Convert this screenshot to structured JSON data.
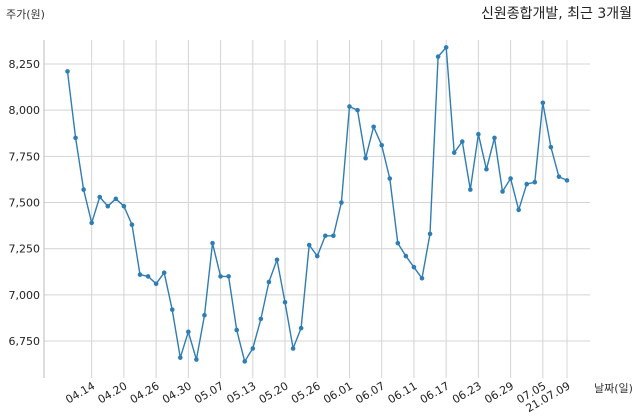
{
  "chart_data": {
    "type": "line",
    "title": "신원종합개발, 최근 3개월",
    "xlabel": "날짜(일)",
    "ylabel": "주가(원)",
    "ylim": [
      6550,
      8380
    ],
    "grid": true,
    "color": "#2e7db3",
    "yticks": [
      6750,
      7000,
      7250,
      7500,
      7750,
      8000,
      8250
    ],
    "ytick_labels": [
      "6,750",
      "7,000",
      "7,250",
      "7,500",
      "7,750",
      "8,000",
      "8,250"
    ],
    "xticks": [
      {
        "index": 3,
        "label": "04.14"
      },
      {
        "index": 7,
        "label": "04.20"
      },
      {
        "index": 11,
        "label": "04.26"
      },
      {
        "index": 15,
        "label": "04.30"
      },
      {
        "index": 19,
        "label": "05.07"
      },
      {
        "index": 23,
        "label": "05.13"
      },
      {
        "index": 27,
        "label": "05.20"
      },
      {
        "index": 31,
        "label": "05.26"
      },
      {
        "index": 35,
        "label": "06.01"
      },
      {
        "index": 39,
        "label": "06.07"
      },
      {
        "index": 43,
        "label": "06.11"
      },
      {
        "index": 47,
        "label": "06.17"
      },
      {
        "index": 51,
        "label": "06.23"
      },
      {
        "index": 55,
        "label": "06.29"
      },
      {
        "index": 59,
        "label": "07.05"
      },
      {
        "index": 62,
        "label": "21.07.09"
      }
    ],
    "values": [
      8210,
      7850,
      7570,
      7390,
      7530,
      7480,
      7520,
      7480,
      7380,
      7110,
      7100,
      7060,
      7120,
      6920,
      6660,
      6800,
      6650,
      6890,
      7280,
      7100,
      7100,
      6810,
      6640,
      6710,
      6870,
      7070,
      7190,
      6960,
      6710,
      6820,
      7270,
      7210,
      7320,
      7320,
      7500,
      8020,
      8000,
      7740,
      7910,
      7810,
      7630,
      7280,
      7210,
      7150,
      7090,
      7330,
      8290,
      8340,
      7770,
      7830,
      7570,
      7870,
      7680,
      7850,
      7560,
      7630,
      7460,
      7600,
      7610,
      8040,
      7800,
      7640,
      7620
    ]
  }
}
